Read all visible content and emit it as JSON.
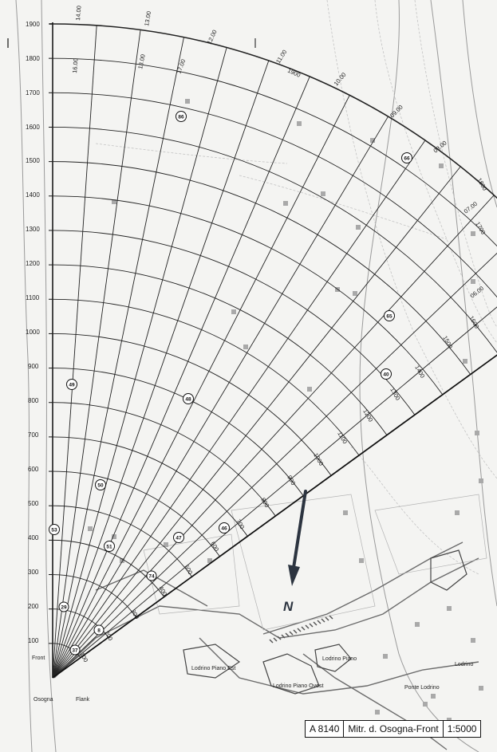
{
  "title_box": {
    "code": "A 8140",
    "name": "Mitr. d. Osogna-Front",
    "scale": "1:5000"
  },
  "north_label": "N",
  "y_ticks": [
    "1900",
    "1800",
    "1700",
    "1600",
    "1500",
    "1400",
    "1300",
    "1200",
    "1100",
    "1000",
    "900",
    "800",
    "700",
    "600",
    "500",
    "400",
    "300",
    "200",
    "100"
  ],
  "arc_labels": [
    "1900",
    "1800",
    "1700",
    "1600",
    "1500",
    "1400",
    "1300",
    "1200",
    "1100",
    "1000",
    "900",
    "800",
    "700",
    "600",
    "500",
    "400",
    "300",
    "200",
    "100"
  ],
  "ray_labels": [
    "14.00",
    "16.00",
    "13.00",
    "13.00",
    "17.00",
    "12.00",
    "11.00",
    "10.00",
    "09.00",
    "08.00",
    "07.00",
    "06.00"
  ],
  "place_names": [
    "Front",
    "Osogna",
    "Flank",
    "Lodrino Piano Est",
    "Lodrino Piano",
    "Lodrino Piano Ovest",
    "Ponte Lodrino",
    "Lodrino"
  ],
  "target_markers": [
    "86",
    "66",
    "65",
    "40",
    "49",
    "48",
    "50",
    "53",
    "47",
    "46",
    "51",
    "8",
    "37",
    "29",
    "74"
  ]
}
